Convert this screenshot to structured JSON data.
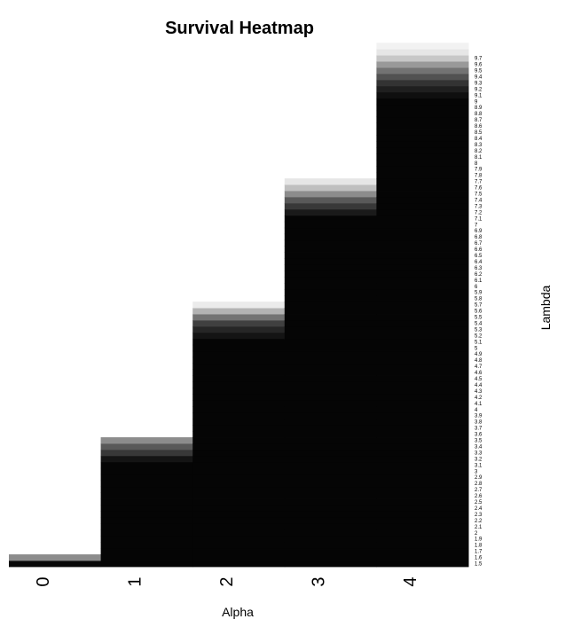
{
  "chart_data": {
    "type": "heatmap",
    "title": "Survival Heatmap",
    "xlabel": "Alpha",
    "ylabel": "Lambda",
    "x_categories": [
      "0",
      "1",
      "2",
      "3",
      "4"
    ],
    "y_categories": [
      "1.5",
      "1.6",
      "1.7",
      "1.8",
      "1.9",
      "2",
      "2.1",
      "2.2",
      "2.3",
      "2.4",
      "2.5",
      "2.6",
      "2.7",
      "2.8",
      "2.9",
      "3",
      "3.1",
      "3.2",
      "3.3",
      "3.4",
      "3.5",
      "3.6",
      "3.7",
      "3.8",
      "3.9",
      "4",
      "4.1",
      "4.2",
      "4.3",
      "4.4",
      "4.5",
      "4.6",
      "4.7",
      "4.8",
      "4.9",
      "5",
      "5.1",
      "5.2",
      "5.3",
      "5.4",
      "5.5",
      "5.6",
      "5.7",
      "5.8",
      "5.9",
      "6",
      "6.1",
      "6.2",
      "6.3",
      "6.4",
      "6.5",
      "6.6",
      "6.7",
      "6.8",
      "6.9",
      "7",
      "7.1",
      "7.2",
      "7.3",
      "7.4",
      "7.5",
      "7.6",
      "7.7",
      "7.8",
      "7.9",
      "8",
      "8.1",
      "8.2",
      "8.3",
      "8.4",
      "8.5",
      "8.6",
      "8.7",
      "8.8",
      "8.9",
      "9",
      "9.1",
      "9.2",
      "9.3",
      "9.4",
      "9.5",
      "9.6",
      "9.7"
    ],
    "color_scale": {
      "low": "#000000",
      "high": "#ffffff"
    },
    "value_range": [
      0,
      1
    ],
    "series": [
      {
        "alpha": "0",
        "values": [
          0.03,
          0.55
        ]
      },
      {
        "alpha": "1",
        "values": [
          0.02,
          0.02,
          0.02,
          0.02,
          0.02,
          0.02,
          0.02,
          0.02,
          0.02,
          0.02,
          0.02,
          0.02,
          0.02,
          0.02,
          0.02,
          0.02,
          0.02,
          0.08,
          0.22,
          0.35,
          0.55
        ]
      },
      {
        "alpha": "2",
        "values": [
          0.02,
          0.02,
          0.02,
          0.02,
          0.02,
          0.02,
          0.02,
          0.02,
          0.02,
          0.02,
          0.02,
          0.02,
          0.02,
          0.02,
          0.02,
          0.02,
          0.02,
          0.02,
          0.02,
          0.02,
          0.02,
          0.02,
          0.02,
          0.02,
          0.02,
          0.02,
          0.02,
          0.02,
          0.02,
          0.02,
          0.02,
          0.02,
          0.02,
          0.02,
          0.02,
          0.02,
          0.02,
          0.08,
          0.15,
          0.25,
          0.45,
          0.7,
          0.92
        ]
      },
      {
        "alpha": "3",
        "values": [
          0.02,
          0.02,
          0.02,
          0.02,
          0.02,
          0.02,
          0.02,
          0.02,
          0.02,
          0.02,
          0.02,
          0.02,
          0.02,
          0.02,
          0.02,
          0.02,
          0.02,
          0.02,
          0.02,
          0.02,
          0.02,
          0.02,
          0.02,
          0.02,
          0.02,
          0.02,
          0.02,
          0.02,
          0.02,
          0.02,
          0.02,
          0.02,
          0.02,
          0.02,
          0.02,
          0.02,
          0.02,
          0.02,
          0.02,
          0.02,
          0.02,
          0.02,
          0.02,
          0.02,
          0.02,
          0.02,
          0.02,
          0.02,
          0.02,
          0.02,
          0.02,
          0.02,
          0.02,
          0.02,
          0.02,
          0.02,
          0.02,
          0.1,
          0.22,
          0.35,
          0.55,
          0.75,
          0.9
        ]
      },
      {
        "alpha": "4",
        "values": [
          0.02,
          0.02,
          0.02,
          0.02,
          0.02,
          0.02,
          0.02,
          0.02,
          0.02,
          0.02,
          0.02,
          0.02,
          0.02,
          0.02,
          0.02,
          0.02,
          0.02,
          0.02,
          0.02,
          0.02,
          0.02,
          0.02,
          0.02,
          0.02,
          0.02,
          0.02,
          0.02,
          0.02,
          0.02,
          0.02,
          0.02,
          0.02,
          0.02,
          0.02,
          0.02,
          0.02,
          0.02,
          0.02,
          0.02,
          0.02,
          0.02,
          0.02,
          0.02,
          0.02,
          0.02,
          0.02,
          0.02,
          0.02,
          0.02,
          0.02,
          0.02,
          0.02,
          0.02,
          0.02,
          0.02,
          0.02,
          0.02,
          0.02,
          0.02,
          0.02,
          0.02,
          0.02,
          0.02,
          0.02,
          0.02,
          0.02,
          0.02,
          0.02,
          0.02,
          0.02,
          0.02,
          0.02,
          0.02,
          0.02,
          0.02,
          0.02,
          0.06,
          0.12,
          0.2,
          0.32,
          0.45,
          0.6,
          0.78,
          0.9,
          0.95
        ]
      }
    ],
    "grid": false,
    "legend": "none"
  }
}
